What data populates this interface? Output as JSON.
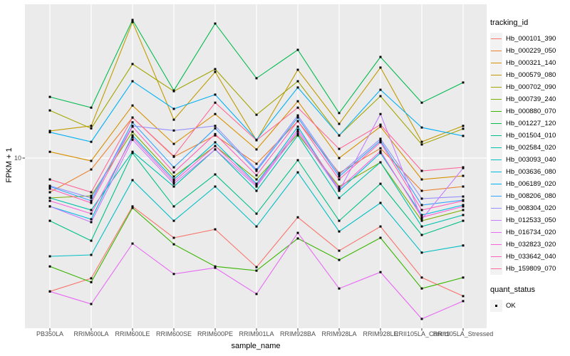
{
  "figure": {
    "x_axis_title": "sample_name",
    "y_axis_title": "FPKM + 1",
    "y_tick_label": "10",
    "panel_bg": "#EBEBEB",
    "grid_color": "#FFFFFF",
    "tick_color": "#333333",
    "tick_label_color": "#4D4D4D",
    "point_color": "#000000"
  },
  "legend": {
    "tracking_title": "tracking_id",
    "quant_title": "quant_status",
    "quant_entries": [
      {
        "label": "OK"
      }
    ]
  },
  "chart_data": {
    "type": "line",
    "title": "",
    "xlabel": "sample_name",
    "ylabel": "FPKM + 1",
    "y_scale": "log10",
    "y_ticks": [
      10
    ],
    "ylim": [
      0.75,
      103
    ],
    "grid": "white vertical gridline per sample; horizontal gridline at y=10",
    "legend_position": "right",
    "marker": "black filled square (quant_status = OK)",
    "categories": [
      "PB350LA",
      "RRIM600LA",
      "RRIM600LE",
      "RRIM600SE",
      "RRIM600PE",
      "RRIM901LA",
      "RRIM928BA",
      "RRIM928LA",
      "RRIM928LE",
      "RRII105LA_Control",
      "RRII105LA_Stressed"
    ],
    "series": [
      {
        "name": "Hb_000101_390",
        "color": "#F8766D",
        "values": [
          1.32,
          1.61,
          4.8,
          2.98,
          3.39,
          1.91,
          4.07,
          2.45,
          3.54,
          1.63,
          1.23
        ]
      },
      {
        "name": "Hb_000229_050",
        "color": "#EA8331",
        "values": [
          5.95,
          8.41,
          18.5,
          10.2,
          14.1,
          9.17,
          17.5,
          7.97,
          11.6,
          6.08,
          6.49
        ]
      },
      {
        "name": "Hb_000321_140",
        "color": "#D89000",
        "values": [
          11.0,
          9.58,
          22.2,
          12.4,
          19.5,
          11.4,
          23.7,
          10.0,
          16.1,
          7.23,
          7.63
        ]
      },
      {
        "name": "Hb_000579_080",
        "color": "#C09B00",
        "values": [
          15.1,
          16.3,
          78.9,
          17.9,
          37.0,
          13.1,
          38.2,
          16.8,
          39.5,
          12.8,
          16.3
        ]
      },
      {
        "name": "Hb_000702_090",
        "color": "#A3A500",
        "values": [
          20.6,
          15.7,
          41.7,
          27.6,
          38.6,
          19.3,
          32.1,
          14.1,
          25.6,
          12.3,
          15.6
        ]
      },
      {
        "name": "Hb_000739_240",
        "color": "#7CAE00",
        "values": [
          5.46,
          5.64,
          14.9,
          7.55,
          12.0,
          7.23,
          14.4,
          6.49,
          9.37,
          3.86,
          4.54
        ]
      },
      {
        "name": "Hb_000880_070",
        "color": "#39B600",
        "values": [
          1.93,
          1.52,
          4.69,
          2.7,
          1.93,
          1.81,
          2.95,
          2.13,
          2.98,
          1.38,
          1.63
        ]
      },
      {
        "name": "Hb_001227_120",
        "color": "#00BB4E",
        "values": [
          25.3,
          21.5,
          81.4,
          27.9,
          77.1,
          33.6,
          51.7,
          19.8,
          46.4,
          23.2,
          31.5
        ]
      },
      {
        "name": "Hb_001504_010",
        "color": "#00C087",
        "values": [
          3.86,
          2.85,
          10.8,
          4.8,
          7.8,
          4.3,
          9.68,
          3.86,
          6.77,
          3.11,
          3.86
        ]
      },
      {
        "name": "Hb_002584_020",
        "color": "#00C1AB",
        "values": [
          5.46,
          4.54,
          11.0,
          6.49,
          11.4,
          6.08,
          14.1,
          5.46,
          9.37,
          3.54,
          4.21
        ]
      },
      {
        "name": "Hb_003093_040",
        "color": "#00BFC4",
        "values": [
          2.25,
          2.3,
          7.15,
          3.86,
          6.49,
          3.54,
          8.05,
          3.28,
          5.06,
          2.38,
          2.65
        ]
      },
      {
        "name": "Hb_003636_080",
        "color": "#00BAE0",
        "values": [
          4.8,
          3.95,
          14.1,
          7.23,
          12.7,
          6.77,
          16.1,
          6.08,
          10.8,
          4.21,
          4.9
        ]
      },
      {
        "name": "Hb_006189_020",
        "color": "#00B0F6",
        "values": [
          14.8,
          12.8,
          32.1,
          21.1,
          26.2,
          13.2,
          29.2,
          14.1,
          28.2,
          15.9,
          14.0
        ]
      },
      {
        "name": "Hb_008206_080",
        "color": "#35A2FF",
        "values": [
          6.49,
          5.22,
          17.2,
          8.69,
          15.7,
          8.23,
          18.5,
          7.55,
          13.0,
          4.9,
          5.28
        ]
      },
      {
        "name": "Hb_008304_020",
        "color": "#9590FF",
        "values": [
          6.56,
          5.46,
          16.3,
          15.2,
          16.3,
          8.41,
          19.1,
          7.8,
          13.4,
          5.4,
          5.58
        ]
      },
      {
        "name": "Hb_012533_050",
        "color": "#C77CFF",
        "values": [
          4.8,
          3.78,
          13.2,
          6.77,
          11.4,
          6.49,
          14.9,
          6.08,
          19.5,
          3.95,
          8.59
        ]
      },
      {
        "name": "Hb_016734_020",
        "color": "#E76BF3",
        "values": [
          1.32,
          1.09,
          2.73,
          1.72,
          1.89,
          1.27,
          3.21,
          1.38,
          1.77,
          0.87,
          1.14
        ]
      },
      {
        "name": "Hb_032823_020",
        "color": "#FA62DB",
        "values": [
          5.22,
          4.3,
          13.7,
          7.0,
          12.0,
          6.63,
          15.4,
          6.28,
          11.1,
          4.07,
          4.8
        ]
      },
      {
        "name": "Hb_033642_040",
        "color": "#FF62BC",
        "values": [
          6.28,
          5.06,
          16.1,
          8.05,
          14.4,
          7.71,
          17.5,
          7.23,
          12.7,
          4.54,
          5.22
        ]
      },
      {
        "name": "Hb_159809_070",
        "color": "#FF6A98",
        "values": [
          7.23,
          5.95,
          18.5,
          10.3,
          23.2,
          13.1,
          21.5,
          11.5,
          16.6,
          8.23,
          8.69
        ]
      }
    ]
  }
}
